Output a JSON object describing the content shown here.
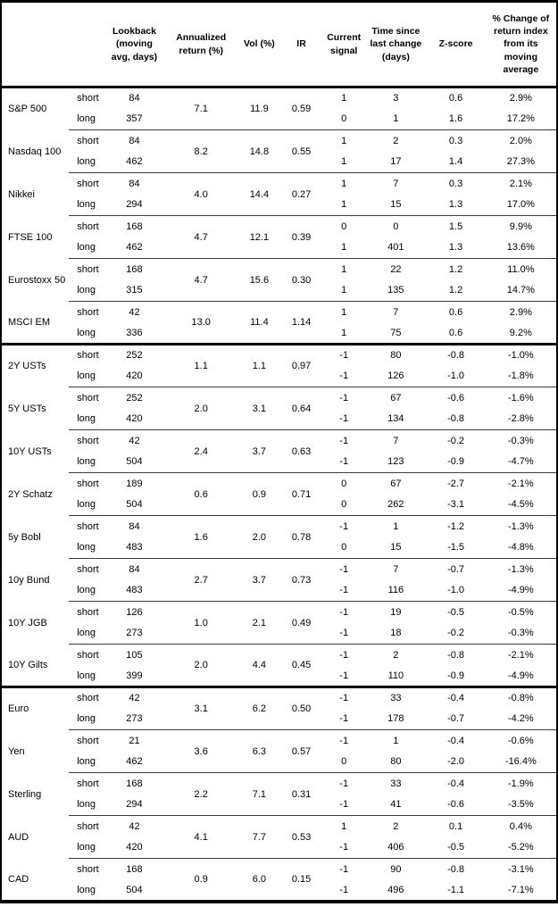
{
  "chart_data": {
    "type": "table",
    "column_headers": [
      "",
      "",
      "Lookback (moving avg, days)",
      "Annualized return (%)",
      "Vol (%)",
      "IR",
      "Current signal",
      "Time since last change (days)",
      "Z-score",
      "% Change of return index from its moving average"
    ],
    "header_display": [
      "",
      "",
      "Lookback\n(moving\navg, days)",
      "Annualized\nreturn (%)",
      "Vol (%)",
      "IR",
      "Current\nsignal",
      "Time since\nlast change\n(days)",
      "Z-score",
      "% Change of\nreturn index\nfrom its\nmoving\naverage"
    ],
    "sections": [
      {
        "assets": [
          {
            "name": "S&P 500",
            "annualized_return": "7.1",
            "vol": "11.9",
            "ir": "0.59",
            "legs": [
              {
                "leg": "short",
                "lookback": "84",
                "signal": "1",
                "time_since_change": "3",
                "z_score": "0.6",
                "pct_change": "2.9%"
              },
              {
                "leg": "long",
                "lookback": "357",
                "signal": "0",
                "time_since_change": "1",
                "z_score": "1.6",
                "pct_change": "17.2%"
              }
            ]
          },
          {
            "name": "Nasdaq 100",
            "annualized_return": "8.2",
            "vol": "14.8",
            "ir": "0.55",
            "legs": [
              {
                "leg": "short",
                "lookback": "84",
                "signal": "1",
                "time_since_change": "2",
                "z_score": "0.3",
                "pct_change": "2.0%"
              },
              {
                "leg": "long",
                "lookback": "462",
                "signal": "1",
                "time_since_change": "17",
                "z_score": "1.4",
                "pct_change": "27.3%"
              }
            ]
          },
          {
            "name": "Nikkei",
            "annualized_return": "4.0",
            "vol": "14.4",
            "ir": "0.27",
            "legs": [
              {
                "leg": "short",
                "lookback": "84",
                "signal": "1",
                "time_since_change": "7",
                "z_score": "0.3",
                "pct_change": "2.1%"
              },
              {
                "leg": "long",
                "lookback": "294",
                "signal": "1",
                "time_since_change": "15",
                "z_score": "1.3",
                "pct_change": "17.0%"
              }
            ]
          },
          {
            "name": "FTSE 100",
            "annualized_return": "4.7",
            "vol": "12.1",
            "ir": "0.39",
            "legs": [
              {
                "leg": "short",
                "lookback": "168",
                "signal": "0",
                "time_since_change": "0",
                "z_score": "1.5",
                "pct_change": "9.9%"
              },
              {
                "leg": "long",
                "lookback": "462",
                "signal": "1",
                "time_since_change": "401",
                "z_score": "1.3",
                "pct_change": "13.6%"
              }
            ]
          },
          {
            "name": "Eurostoxx 50",
            "annualized_return": "4.7",
            "vol": "15.6",
            "ir": "0.30",
            "legs": [
              {
                "leg": "short",
                "lookback": "168",
                "signal": "1",
                "time_since_change": "22",
                "z_score": "1.2",
                "pct_change": "11.0%"
              },
              {
                "leg": "long",
                "lookback": "315",
                "signal": "1",
                "time_since_change": "135",
                "z_score": "1.2",
                "pct_change": "14.7%"
              }
            ]
          },
          {
            "name": "MSCI EM",
            "annualized_return": "13.0",
            "vol": "11.4",
            "ir": "1.14",
            "legs": [
              {
                "leg": "short",
                "lookback": "42",
                "signal": "1",
                "time_since_change": "7",
                "z_score": "0.6",
                "pct_change": "2.9%"
              },
              {
                "leg": "long",
                "lookback": "336",
                "signal": "1",
                "time_since_change": "75",
                "z_score": "0.6",
                "pct_change": "9.2%"
              }
            ]
          }
        ]
      },
      {
        "assets": [
          {
            "name": "2Y USTs",
            "annualized_return": "1.1",
            "vol": "1.1",
            "ir": "0.97",
            "legs": [
              {
                "leg": "short",
                "lookback": "252",
                "signal": "-1",
                "time_since_change": "80",
                "z_score": "-0.8",
                "pct_change": "-1.0%"
              },
              {
                "leg": "long",
                "lookback": "420",
                "signal": "-1",
                "time_since_change": "126",
                "z_score": "-1.0",
                "pct_change": "-1.8%"
              }
            ]
          },
          {
            "name": "5Y USTs",
            "annualized_return": "2.0",
            "vol": "3.1",
            "ir": "0.64",
            "legs": [
              {
                "leg": "short",
                "lookback": "252",
                "signal": "-1",
                "time_since_change": "67",
                "z_score": "-0.6",
                "pct_change": "-1.6%"
              },
              {
                "leg": "long",
                "lookback": "420",
                "signal": "-1",
                "time_since_change": "134",
                "z_score": "-0.8",
                "pct_change": "-2.8%"
              }
            ]
          },
          {
            "name": "10Y USTs",
            "annualized_return": "2.4",
            "vol": "3.7",
            "ir": "0.63",
            "legs": [
              {
                "leg": "short",
                "lookback": "42",
                "signal": "-1",
                "time_since_change": "7",
                "z_score": "-0.2",
                "pct_change": "-0.3%"
              },
              {
                "leg": "long",
                "lookback": "504",
                "signal": "-1",
                "time_since_change": "123",
                "z_score": "-0.9",
                "pct_change": "-4.7%"
              }
            ]
          },
          {
            "name": "2Y Schatz",
            "annualized_return": "0.6",
            "vol": "0.9",
            "ir": "0.71",
            "legs": [
              {
                "leg": "short",
                "lookback": "189",
                "signal": "0",
                "time_since_change": "67",
                "z_score": "-2.7",
                "pct_change": "-2.1%"
              },
              {
                "leg": "long",
                "lookback": "504",
                "signal": "0",
                "time_since_change": "262",
                "z_score": "-3.1",
                "pct_change": "-4.5%"
              }
            ]
          },
          {
            "name": "5y Bobl",
            "annualized_return": "1.6",
            "vol": "2.0",
            "ir": "0.78",
            "legs": [
              {
                "leg": "short",
                "lookback": "84",
                "signal": "-1",
                "time_since_change": "1",
                "z_score": "-1.2",
                "pct_change": "-1.3%"
              },
              {
                "leg": "long",
                "lookback": "483",
                "signal": "0",
                "time_since_change": "15",
                "z_score": "-1.5",
                "pct_change": "-4.8%"
              }
            ]
          },
          {
            "name": "10y Bund",
            "annualized_return": "2.7",
            "vol": "3.7",
            "ir": "0.73",
            "legs": [
              {
                "leg": "short",
                "lookback": "84",
                "signal": "-1",
                "time_since_change": "7",
                "z_score": "-0.7",
                "pct_change": "-1.3%"
              },
              {
                "leg": "long",
                "lookback": "483",
                "signal": "-1",
                "time_since_change": "116",
                "z_score": "-1.0",
                "pct_change": "-4.9%"
              }
            ]
          },
          {
            "name": "10Y JGB",
            "annualized_return": "1.0",
            "vol": "2.1",
            "ir": "0.49",
            "legs": [
              {
                "leg": "short",
                "lookback": "126",
                "signal": "-1",
                "time_since_change": "19",
                "z_score": "-0.5",
                "pct_change": "-0.5%"
              },
              {
                "leg": "long",
                "lookback": "273",
                "signal": "-1",
                "time_since_change": "18",
                "z_score": "-0.2",
                "pct_change": "-0.3%"
              }
            ]
          },
          {
            "name": "10Y Gilts",
            "annualized_return": "2.0",
            "vol": "4.4",
            "ir": "0.45",
            "legs": [
              {
                "leg": "short",
                "lookback": "105",
                "signal": "-1",
                "time_since_change": "2",
                "z_score": "-0.8",
                "pct_change": "-2.1%"
              },
              {
                "leg": "long",
                "lookback": "399",
                "signal": "-1",
                "time_since_change": "110",
                "z_score": "-0.9",
                "pct_change": "-4.9%"
              }
            ]
          }
        ]
      },
      {
        "assets": [
          {
            "name": "Euro",
            "annualized_return": "3.1",
            "vol": "6.2",
            "ir": "0.50",
            "legs": [
              {
                "leg": "short",
                "lookback": "42",
                "signal": "-1",
                "time_since_change": "33",
                "z_score": "-0.4",
                "pct_change": "-0.8%"
              },
              {
                "leg": "long",
                "lookback": "273",
                "signal": "-1",
                "time_since_change": "178",
                "z_score": "-0.7",
                "pct_change": "-4.2%"
              }
            ]
          },
          {
            "name": "Yen",
            "annualized_return": "3.6",
            "vol": "6.3",
            "ir": "0.57",
            "legs": [
              {
                "leg": "short",
                "lookback": "21",
                "signal": "-1",
                "time_since_change": "1",
                "z_score": "-0.4",
                "pct_change": "-0.6%"
              },
              {
                "leg": "long",
                "lookback": "462",
                "signal": "0",
                "time_since_change": "80",
                "z_score": "-2.0",
                "pct_change": "-16.4%"
              }
            ]
          },
          {
            "name": "Sterling",
            "annualized_return": "2.2",
            "vol": "7.1",
            "ir": "0.31",
            "legs": [
              {
                "leg": "short",
                "lookback": "168",
                "signal": "-1",
                "time_since_change": "33",
                "z_score": "-0.4",
                "pct_change": "-1.9%"
              },
              {
                "leg": "long",
                "lookback": "294",
                "signal": "-1",
                "time_since_change": "41",
                "z_score": "-0.6",
                "pct_change": "-3.5%"
              }
            ]
          },
          {
            "name": "AUD",
            "annualized_return": "4.1",
            "vol": "7.7",
            "ir": "0.53",
            "legs": [
              {
                "leg": "short",
                "lookback": "42",
                "signal": "1",
                "time_since_change": "2",
                "z_score": "0.1",
                "pct_change": "0.4%"
              },
              {
                "leg": "long",
                "lookback": "420",
                "signal": "-1",
                "time_since_change": "406",
                "z_score": "-0.5",
                "pct_change": "-5.2%"
              }
            ]
          },
          {
            "name": "CAD",
            "annualized_return": "0.9",
            "vol": "6.0",
            "ir": "0.15",
            "legs": [
              {
                "leg": "short",
                "lookback": "168",
                "signal": "-1",
                "time_since_change": "90",
                "z_score": "-0.8",
                "pct_change": "-3.1%"
              },
              {
                "leg": "long",
                "lookback": "504",
                "signal": "-1",
                "time_since_change": "496",
                "z_score": "-1.1",
                "pct_change": "-7.1%"
              }
            ]
          }
        ]
      }
    ]
  }
}
